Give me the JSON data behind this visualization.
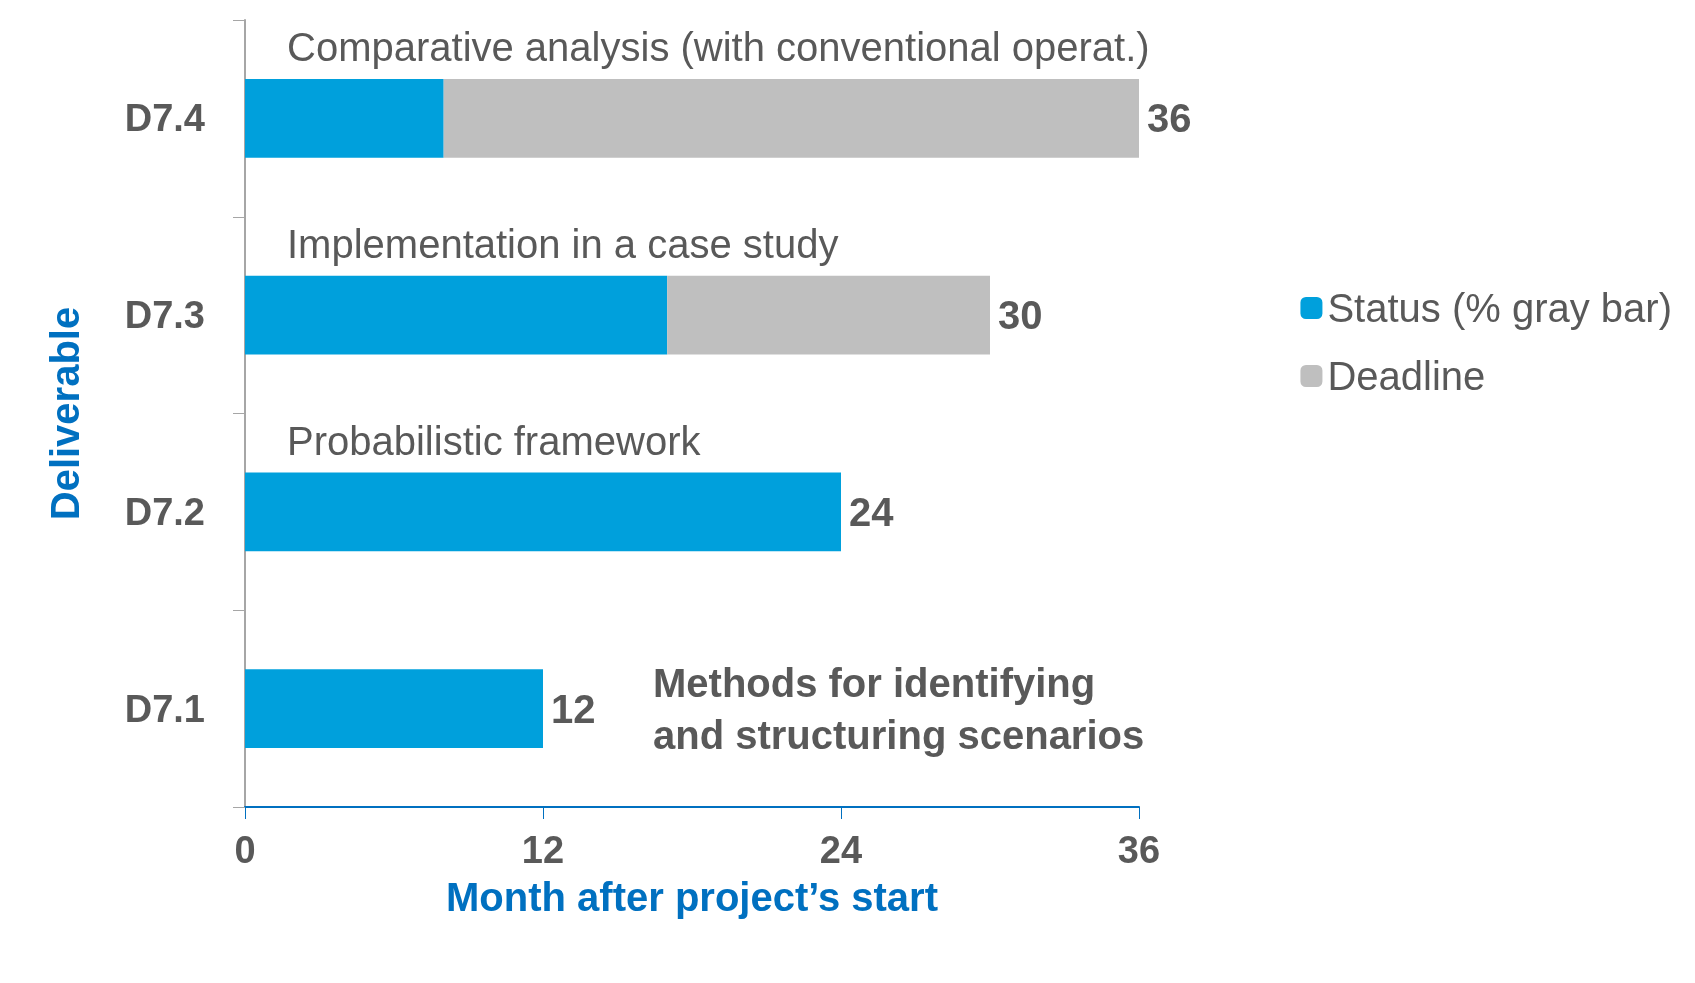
{
  "chart_data": {
    "type": "bar",
    "orientation": "horizontal",
    "stacked": true,
    "categories": [
      "D7.4",
      "D7.3",
      "D7.2",
      "D7.1"
    ],
    "series": [
      {
        "name": "Status (% gray bar)",
        "color": "#00a0dc",
        "values": [
          8,
          17,
          24,
          12
        ]
      },
      {
        "name": "Deadline",
        "color": "#bfbfbf",
        "values": [
          28,
          13,
          0,
          0
        ]
      }
    ],
    "totals": [
      "36",
      "30",
      "24",
      "12"
    ],
    "xlim": [
      0,
      36
    ],
    "xticks": [
      0,
      12,
      24,
      36
    ],
    "xlabel": "Month after project’s start",
    "ylabel": "Deliverable",
    "annotations": [
      "Comparative analysis (with conventional operat.)",
      "Implementation in a case study",
      "Probabilistic framework",
      "Methods for identifying\nand structuring scenarios"
    ],
    "legend": "right",
    "grid": false
  }
}
